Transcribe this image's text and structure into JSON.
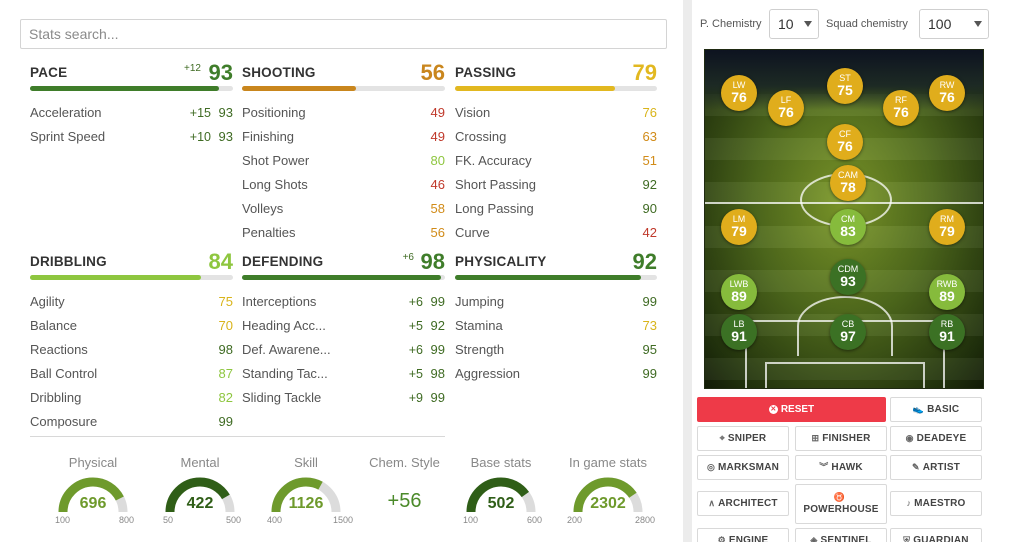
{
  "search": {
    "placeholder": "Stats search..."
  },
  "colors": {
    "dark_green": "#3f6b23",
    "green": "#4b8a2a",
    "light_green": "#8ec63f",
    "yellow": "#d9b41a",
    "orange": "#d18b18",
    "red": "#c0392b",
    "reset_red": "#ee3a48",
    "bar_bg": "#e3e3e3"
  },
  "categories": [
    {
      "name": "PACE",
      "boost": "+12",
      "value": "93",
      "fill": 0.93,
      "color": "#3f7d2a",
      "stats": [
        {
          "name": "Acceleration",
          "boost": "+15",
          "value": "93",
          "color": "#3f6b23"
        },
        {
          "name": "Sprint Speed",
          "boost": "+10",
          "value": "93",
          "color": "#3f6b23"
        }
      ]
    },
    {
      "name": "SHOOTING",
      "boost": "",
      "value": "56",
      "fill": 0.56,
      "color": "#c9861d",
      "stats": [
        {
          "name": "Positioning",
          "boost": "",
          "value": "49",
          "color": "#c0392b"
        },
        {
          "name": "Finishing",
          "boost": "",
          "value": "49",
          "color": "#c0392b"
        },
        {
          "name": "Shot Power",
          "boost": "",
          "value": "80",
          "color": "#8ec63f"
        },
        {
          "name": "Long Shots",
          "boost": "",
          "value": "46",
          "color": "#c0392b"
        },
        {
          "name": "Volleys",
          "boost": "",
          "value": "58",
          "color": "#d18b18"
        },
        {
          "name": "Penalties",
          "boost": "",
          "value": "56",
          "color": "#d18b18"
        }
      ]
    },
    {
      "name": "PASSING",
      "boost": "",
      "value": "79",
      "fill": 0.79,
      "color": "#e2b820",
      "stats": [
        {
          "name": "Vision",
          "boost": "",
          "value": "76",
          "color": "#d9b41a"
        },
        {
          "name": "Crossing",
          "boost": "",
          "value": "63",
          "color": "#d18b18"
        },
        {
          "name": "FK. Accuracy",
          "boost": "",
          "value": "51",
          "color": "#d18b18"
        },
        {
          "name": "Short Passing",
          "boost": "",
          "value": "92",
          "color": "#3f6b23"
        },
        {
          "name": "Long Passing",
          "boost": "",
          "value": "90",
          "color": "#3f6b23"
        },
        {
          "name": "Curve",
          "boost": "",
          "value": "42",
          "color": "#c0392b"
        }
      ]
    },
    {
      "name": "DRIBBLING",
      "boost": "",
      "value": "84",
      "fill": 0.84,
      "color": "#8ec63f",
      "stats": [
        {
          "name": "Agility",
          "boost": "",
          "value": "75",
          "color": "#d9b41a"
        },
        {
          "name": "Balance",
          "boost": "",
          "value": "70",
          "color": "#d9b41a"
        },
        {
          "name": "Reactions",
          "boost": "",
          "value": "98",
          "color": "#3f6b23"
        },
        {
          "name": "Ball Control",
          "boost": "",
          "value": "87",
          "color": "#8ec63f"
        },
        {
          "name": "Dribbling",
          "boost": "",
          "value": "82",
          "color": "#8ec63f"
        },
        {
          "name": "Composure",
          "boost": "",
          "value": "99",
          "color": "#3f6b23"
        }
      ]
    },
    {
      "name": "DEFENDING",
      "boost": "+6",
      "value": "98",
      "fill": 0.98,
      "color": "#3f7d2a",
      "stats": [
        {
          "name": "Interceptions",
          "boost": "+6",
          "value": "99",
          "color": "#3f6b23"
        },
        {
          "name": "Heading Acc...",
          "boost": "+5",
          "value": "92",
          "color": "#3f6b23"
        },
        {
          "name": "Def. Awarene...",
          "boost": "+6",
          "value": "99",
          "color": "#3f6b23"
        },
        {
          "name": "Standing Tac...",
          "boost": "+5",
          "value": "98",
          "color": "#3f6b23"
        },
        {
          "name": "Sliding Tackle",
          "boost": "+9",
          "value": "99",
          "color": "#3f6b23"
        }
      ]
    },
    {
      "name": "PHYSICALITY",
      "boost": "",
      "value": "92",
      "fill": 0.92,
      "color": "#3f7d2a",
      "stats": [
        {
          "name": "Jumping",
          "boost": "",
          "value": "99",
          "color": "#3f6b23"
        },
        {
          "name": "Stamina",
          "boost": "",
          "value": "73",
          "color": "#d9b41a"
        },
        {
          "name": "Strength",
          "boost": "",
          "value": "95",
          "color": "#3f6b23"
        },
        {
          "name": "Aggression",
          "boost": "",
          "value": "99",
          "color": "#3f6b23"
        }
      ]
    }
  ],
  "gauges": [
    {
      "label": "Physical",
      "value": "696",
      "min": "100",
      "max": "800",
      "fraction": 0.85,
      "color": "#6e9a2c"
    },
    {
      "label": "Mental",
      "value": "422",
      "min": "50",
      "max": "500",
      "fraction": 0.83,
      "color": "#2f5e17"
    },
    {
      "label": "Skill",
      "value": "1126",
      "min": "400",
      "max": "1500",
      "fraction": 0.66,
      "color": "#6e9a2c"
    },
    {
      "label": "Base stats",
      "value": "502",
      "min": "100",
      "max": "600",
      "fraction": 0.8,
      "color": "#2f5e17"
    },
    {
      "label": "In game stats",
      "value": "2302",
      "min": "200",
      "max": "2800",
      "fraction": 0.81,
      "color": "#6e9a2c"
    }
  ],
  "chem_style": {
    "label": "Chem. Style",
    "value": "+56"
  },
  "chemistry": {
    "player_label": "P. Chemistry",
    "player_value": "10",
    "squad_label": "Squad chemistry",
    "squad_value": "100"
  },
  "players": [
    {
      "pos": "LW",
      "rating": "76",
      "color": "#e0ad1c"
    },
    {
      "pos": "ST",
      "rating": "75",
      "color": "#e0ad1c"
    },
    {
      "pos": "RW",
      "rating": "76",
      "color": "#e0ad1c"
    },
    {
      "pos": "LF",
      "rating": "76",
      "color": "#e0ad1c"
    },
    {
      "pos": "RF",
      "rating": "76",
      "color": "#e0ad1c"
    },
    {
      "pos": "CF",
      "rating": "76",
      "color": "#e0ad1c"
    },
    {
      "pos": "CAM",
      "rating": "78",
      "color": "#e0ad1c"
    },
    {
      "pos": "LM",
      "rating": "79",
      "color": "#e0ad1c"
    },
    {
      "pos": "CM",
      "rating": "83",
      "color": "#86bb3c"
    },
    {
      "pos": "RM",
      "rating": "79",
      "color": "#e0ad1c"
    },
    {
      "pos": "CDM",
      "rating": "93",
      "color": "#3b7124"
    },
    {
      "pos": "LWB",
      "rating": "89",
      "color": "#86bb3c"
    },
    {
      "pos": "RWB",
      "rating": "89",
      "color": "#86bb3c"
    },
    {
      "pos": "LB",
      "rating": "91",
      "color": "#3b7124"
    },
    {
      "pos": "CB",
      "rating": "97",
      "color": "#3b7124"
    },
    {
      "pos": "RB",
      "rating": "91",
      "color": "#3b7124"
    }
  ],
  "buttons": {
    "reset": "RESET",
    "chem_styles": [
      {
        "label": "BASIC",
        "icon": "shoe-icon",
        "glyph": "👟"
      },
      {
        "label": "SNIPER",
        "icon": "crosshair-icon",
        "glyph": "⌖"
      },
      {
        "label": "FINISHER",
        "icon": "goal-icon",
        "glyph": "⊞"
      },
      {
        "label": "DEADEYE",
        "icon": "eye-icon",
        "glyph": "◉"
      },
      {
        "label": "MARKSMAN",
        "icon": "target-icon",
        "glyph": "◎"
      },
      {
        "label": "HAWK",
        "icon": "hawk-icon",
        "glyph": "︾"
      },
      {
        "label": "ARTIST",
        "icon": "brush-icon",
        "glyph": "✎"
      },
      {
        "label": "ARCHITECT",
        "icon": "compass-icon",
        "glyph": "∧"
      },
      {
        "label": "POWERHOUSE",
        "icon": "powerhouse-icon",
        "glyph": "♉"
      },
      {
        "label": "MAESTRO",
        "icon": "maestro-icon",
        "glyph": "♪"
      },
      {
        "label": "ENGINE",
        "icon": "engine-icon",
        "glyph": "⚙"
      },
      {
        "label": "SENTINEL",
        "icon": "sentinel-icon",
        "glyph": "◈"
      },
      {
        "label": "GUARDIAN",
        "icon": "shield-icon",
        "glyph": "⛨"
      }
    ]
  }
}
